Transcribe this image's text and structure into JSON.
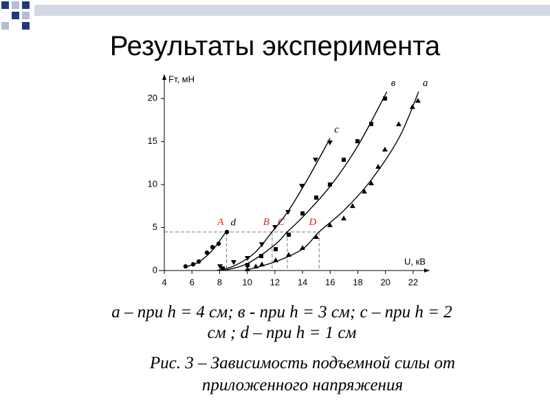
{
  "title": "Результаты эксперимента",
  "chart_data": {
    "type": "scatter",
    "xlabel": "U, кВ",
    "ylabel": "Fт, мН",
    "xlim": [
      4,
      23
    ],
    "ylim": [
      0,
      22.5
    ],
    "xticks": [
      4,
      6,
      8,
      10,
      12,
      14,
      16,
      18,
      20,
      22
    ],
    "yticks": [
      0,
      5,
      10,
      15,
      20
    ],
    "reference_level": 4.48,
    "markers": [
      {
        "label": "A",
        "x": 8.5,
        "y": 4.48
      },
      {
        "label": "B",
        "x": 11.8,
        "y": 4.48
      },
      {
        "label": "C",
        "x": 12.9,
        "y": 4.48
      },
      {
        "label": "D",
        "x": 15.2,
        "y": 4.48
      }
    ],
    "series": [
      {
        "name": "d",
        "color": "#000000",
        "marker": "circle",
        "x": [
          5.54,
          6.09,
          6.49,
          7.08,
          7.48,
          7.93,
          8.53
        ],
        "values": [
          0.48,
          0.72,
          1.04,
          2.08,
          2.72,
          3.12,
          4.48
        ],
        "fit_x": [
          5.5,
          6.5,
          7.5,
          8.5
        ],
        "fit_y": [
          0.4,
          1,
          2.4,
          4.6
        ]
      },
      {
        "name": "c",
        "color": "#000000",
        "marker": "triangle-down",
        "x": [
          8.03,
          9.02,
          10.02,
          11.06,
          12.01,
          12.95,
          13.95,
          14.94,
          15.98
        ],
        "values": [
          0.48,
          0.96,
          1.44,
          3.04,
          5.04,
          6.8,
          9.84,
          12.88,
          14.88
        ],
        "fit_x": [
          7.8,
          9,
          10.5,
          11.8,
          13,
          14.5,
          16
        ],
        "fit_y": [
          0,
          0.5,
          2,
          4.5,
          7,
          11,
          15.4
        ]
      },
      {
        "name": "в",
        "color": "#000000",
        "marker": "square",
        "x": [
          8.23,
          10.02,
          11.01,
          12.06,
          13.0,
          14.0,
          14.99,
          15.98,
          16.98,
          17.97,
          18.97,
          19.96
        ],
        "values": [
          0.24,
          0.64,
          1.68,
          2.48,
          4.16,
          6.64,
          8.48,
          10.0,
          12.88,
          15.04,
          17.04,
          20.0
        ],
        "fit_x": [
          8.3,
          10,
          12,
          12.9,
          14,
          16,
          18,
          20.1
        ],
        "fit_y": [
          0,
          0.8,
          3,
          4.5,
          6.2,
          9.8,
          14.5,
          20.8
        ]
      },
      {
        "name": "a",
        "color": "#000000",
        "marker": "triangle-up",
        "x": [
          10.02,
          10.62,
          11.06,
          12.06,
          13.0,
          14.0,
          14.99,
          15.98,
          16.98,
          17.62,
          18.47,
          18.97,
          19.47,
          19.96,
          20.96,
          21.95,
          22.35
        ],
        "values": [
          0.16,
          0.48,
          0.72,
          1.2,
          1.84,
          2.64,
          3.92,
          5.28,
          6.08,
          7.52,
          9.2,
          10.16,
          12.08,
          14.08,
          17.04,
          19.04,
          19.76
        ],
        "fit_x": [
          9.8,
          12,
          14,
          15.2,
          17,
          19,
          21,
          22.4
        ],
        "fit_y": [
          0,
          1,
          2.5,
          4.5,
          7,
          10.6,
          15.5,
          20.8
        ]
      }
    ]
  },
  "legend_text": [
    "а – при h = 4 см; в - при h = 3 см;  с – при h = 2",
    "см ; d – при h = 1 см"
  ],
  "caption": [
    "Рис. 3 – Зависимость подъемной силы от",
    "приложенного напряжения"
  ]
}
